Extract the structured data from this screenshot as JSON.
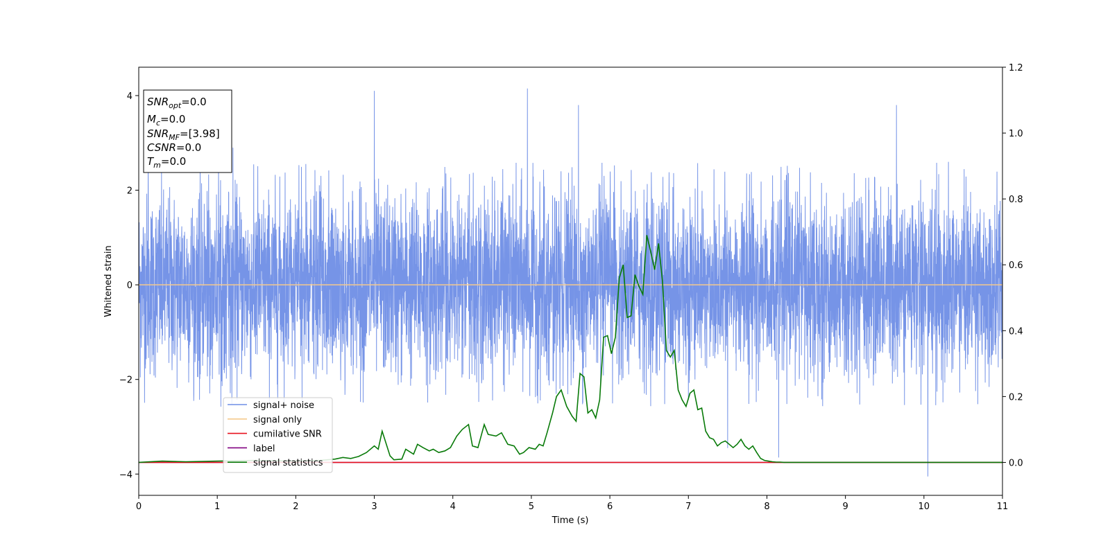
{
  "chart_data": {
    "type": "line",
    "xlabel": "Time (s)",
    "ylabel": "Whitened strain",
    "xlim": [
      0,
      11
    ],
    "ylim": [
      -4.45,
      4.6
    ],
    "y2lim": [
      -0.1,
      1.2
    ],
    "x_ticks": [
      "0",
      "1",
      "2",
      "3",
      "4",
      "5",
      "6",
      "7",
      "8",
      "9",
      "10",
      "11"
    ],
    "y_ticks": [
      "4",
      "2",
      "0",
      "−2",
      "−4"
    ],
    "y2_ticks": [
      "1.2",
      "1.0",
      "0.8",
      "0.6",
      "0.4",
      "0.2",
      "0.0"
    ],
    "grid": false,
    "legend_position": "lower-left",
    "series": [
      {
        "name": "signal+ noise",
        "color": "#6f8ee6",
        "axis": "left",
        "description": "noise trace, approx. zero-mean, typical range -2.7 to 2.7",
        "peaks": [
          [
            0.12,
            2.8
          ],
          [
            1.2,
            2.9
          ],
          [
            3.0,
            4.1
          ],
          [
            4.95,
            4.15
          ],
          [
            5.6,
            3.8
          ],
          [
            9.65,
            3.8
          ],
          [
            10.05,
            -4.05
          ],
          [
            7.5,
            -3.45
          ],
          [
            8.15,
            -3.65
          ]
        ]
      },
      {
        "name": "signal only",
        "color": "#f5c98c",
        "axis": "left",
        "x": [
          0,
          11
        ],
        "y": [
          0,
          0
        ]
      },
      {
        "name": "cumilative SNR",
        "color": "#e8111b",
        "axis": "right",
        "x": [
          0,
          11
        ],
        "y": [
          0,
          0
        ]
      },
      {
        "name": "label",
        "color": "#800080",
        "axis": "right",
        "x": [
          0,
          11
        ],
        "y": [
          0,
          0
        ]
      },
      {
        "name": "signal statistics",
        "color": "#087a08",
        "axis": "right",
        "x": [
          0,
          0.3,
          0.6,
          1.0,
          1.5,
          2.0,
          2.3,
          2.5,
          2.6,
          2.7,
          2.8,
          2.9,
          3.0,
          3.05,
          3.1,
          3.2,
          3.25,
          3.35,
          3.4,
          3.5,
          3.55,
          3.62,
          3.7,
          3.75,
          3.82,
          3.9,
          3.97,
          4.05,
          4.12,
          4.2,
          4.25,
          4.32,
          4.4,
          4.45,
          4.55,
          4.62,
          4.7,
          4.78,
          4.85,
          4.9,
          4.97,
          5.05,
          5.1,
          5.15,
          5.2,
          5.27,
          5.32,
          5.38,
          5.45,
          5.52,
          5.57,
          5.62,
          5.67,
          5.72,
          5.77,
          5.82,
          5.87,
          5.92,
          5.97,
          6.02,
          6.07,
          6.12,
          6.17,
          6.22,
          6.27,
          6.32,
          6.37,
          6.42,
          6.47,
          6.52,
          6.57,
          6.62,
          6.67,
          6.72,
          6.77,
          6.82,
          6.87,
          6.92,
          6.97,
          7.02,
          7.07,
          7.12,
          7.17,
          7.22,
          7.27,
          7.32,
          7.37,
          7.42,
          7.47,
          7.52,
          7.57,
          7.62,
          7.67,
          7.72,
          7.77,
          7.82,
          7.87,
          7.92,
          7.97,
          8.02,
          8.07,
          8.12,
          8.17,
          8.22,
          8.27,
          8.32,
          8.42,
          8.52,
          8.62,
          8.72,
          8.82,
          9.0,
          9.5,
          10.0,
          10.5,
          11.0
        ],
        "y": [
          0,
          0.004,
          0.002,
          0.004,
          0.006,
          0.004,
          0.006,
          0.01,
          0.015,
          0.012,
          0.018,
          0.03,
          0.05,
          0.04,
          0.095,
          0.02,
          0.008,
          0.01,
          0.04,
          0.025,
          0.055,
          0.045,
          0.035,
          0.04,
          0.03,
          0.035,
          0.045,
          0.08,
          0.1,
          0.115,
          0.05,
          0.045,
          0.115,
          0.085,
          0.08,
          0.09,
          0.055,
          0.05,
          0.025,
          0.03,
          0.045,
          0.04,
          0.055,
          0.05,
          0.09,
          0.15,
          0.2,
          0.22,
          0.17,
          0.14,
          0.125,
          0.27,
          0.26,
          0.15,
          0.16,
          0.135,
          0.19,
          0.38,
          0.385,
          0.33,
          0.38,
          0.56,
          0.6,
          0.44,
          0.445,
          0.57,
          0.535,
          0.51,
          0.69,
          0.64,
          0.585,
          0.665,
          0.55,
          0.34,
          0.32,
          0.34,
          0.22,
          0.19,
          0.17,
          0.21,
          0.22,
          0.16,
          0.165,
          0.095,
          0.075,
          0.07,
          0.05,
          0.06,
          0.065,
          0.055,
          0.045,
          0.055,
          0.07,
          0.05,
          0.04,
          0.05,
          0.03,
          0.012,
          0.006,
          0.004,
          0.002,
          0.001,
          0.001,
          0.0,
          0.0,
          0.0,
          0.0,
          0.0,
          0.0,
          0.0,
          0.0,
          0.0,
          0.0,
          0.0,
          0.0,
          0.0
        ]
      }
    ],
    "annotation_lines": [
      "=0.0",
      "=0.0",
      "=[3.98]",
      "=0.0",
      "=0.0"
    ]
  }
}
